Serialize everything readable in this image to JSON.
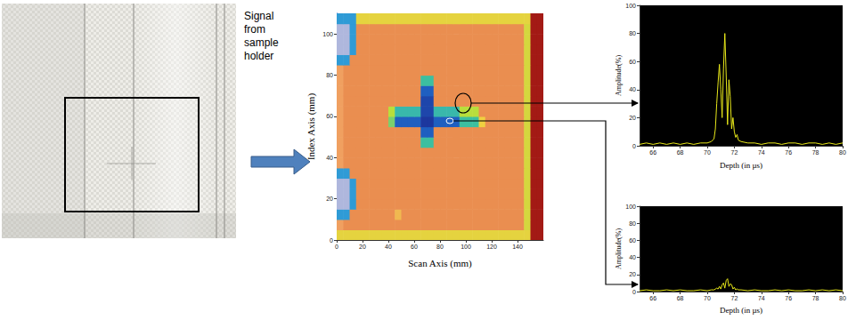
{
  "chart_data": [
    {
      "type": "heatmap",
      "xlabel": "Scan Axis (mm)",
      "ylabel": "Index Axis (mm)",
      "annotations": [
        "Signal from sample holder"
      ],
      "xlim": [
        0,
        160
      ],
      "xticks": [
        0,
        20,
        40,
        60,
        80,
        100,
        120,
        140
      ],
      "ylim": [
        0,
        110
      ],
      "yticks": [
        0,
        20,
        40,
        60,
        80,
        100
      ],
      "zlim": [
        0,
        100
      ],
      "x_bins": [
        0,
        5,
        10,
        15,
        20,
        25,
        30,
        35,
        40,
        45,
        50,
        55,
        60,
        65,
        70,
        75,
        80,
        85,
        90,
        95,
        100,
        105,
        110,
        115,
        120,
        125,
        130,
        135,
        140,
        145,
        150,
        155,
        160
      ],
      "y_bins": [
        0,
        5,
        10,
        15,
        20,
        25,
        30,
        35,
        40,
        45,
        50,
        55,
        60,
        65,
        70,
        75,
        80,
        85,
        90,
        95,
        100,
        105,
        110
      ],
      "cells": [
        [
          58,
          58,
          58,
          58,
          58,
          58,
          58,
          58,
          58,
          58,
          58,
          58,
          58,
          58,
          58,
          58,
          58,
          58,
          58,
          58,
          58,
          58,
          58,
          58,
          58,
          58,
          58,
          58,
          58,
          58,
          98,
          98
        ],
        [
          70,
          78,
          78,
          78,
          78,
          78,
          78,
          78,
          78,
          78,
          78,
          78,
          78,
          78,
          78,
          78,
          78,
          78,
          78,
          78,
          78,
          78,
          78,
          78,
          78,
          78,
          78,
          78,
          78,
          55,
          98,
          98
        ],
        [
          30,
          30,
          78,
          78,
          78,
          78,
          78,
          78,
          78,
          65,
          78,
          78,
          78,
          78,
          78,
          78,
          78,
          78,
          78,
          78,
          78,
          78,
          78,
          78,
          78,
          78,
          78,
          78,
          78,
          55,
          98,
          98
        ],
        [
          3,
          3,
          30,
          78,
          78,
          78,
          78,
          78,
          78,
          78,
          78,
          78,
          78,
          78,
          78,
          78,
          78,
          78,
          78,
          78,
          78,
          78,
          78,
          78,
          78,
          78,
          78,
          78,
          78,
          55,
          98,
          98
        ],
        [
          3,
          3,
          30,
          78,
          78,
          78,
          78,
          78,
          78,
          78,
          78,
          78,
          78,
          78,
          78,
          78,
          78,
          78,
          78,
          78,
          78,
          78,
          78,
          78,
          78,
          78,
          78,
          78,
          78,
          55,
          98,
          98
        ],
        [
          3,
          3,
          30,
          78,
          78,
          78,
          78,
          78,
          78,
          78,
          78,
          78,
          78,
          78,
          78,
          78,
          78,
          78,
          78,
          78,
          78,
          78,
          78,
          78,
          78,
          78,
          78,
          78,
          78,
          55,
          98,
          98
        ],
        [
          30,
          30,
          78,
          78,
          78,
          78,
          78,
          78,
          78,
          78,
          78,
          78,
          78,
          78,
          78,
          78,
          78,
          78,
          78,
          78,
          78,
          78,
          78,
          78,
          78,
          78,
          78,
          78,
          78,
          55,
          98,
          98
        ],
        [
          70,
          78,
          78,
          78,
          78,
          78,
          78,
          78,
          78,
          78,
          78,
          78,
          78,
          78,
          78,
          78,
          78,
          78,
          78,
          78,
          78,
          78,
          78,
          78,
          78,
          78,
          78,
          78,
          78,
          55,
          98,
          98
        ],
        [
          70,
          78,
          78,
          78,
          78,
          78,
          78,
          78,
          78,
          78,
          78,
          78,
          78,
          78,
          78,
          78,
          78,
          78,
          78,
          78,
          78,
          78,
          78,
          78,
          78,
          78,
          78,
          78,
          78,
          55,
          98,
          98
        ],
        [
          70,
          78,
          78,
          78,
          78,
          78,
          78,
          78,
          78,
          78,
          78,
          78,
          78,
          40,
          40,
          78,
          78,
          78,
          78,
          78,
          78,
          78,
          78,
          78,
          78,
          78,
          78,
          78,
          78,
          55,
          98,
          98
        ],
        [
          70,
          78,
          78,
          78,
          78,
          78,
          78,
          78,
          78,
          78,
          78,
          78,
          78,
          20,
          20,
          78,
          78,
          78,
          78,
          78,
          78,
          78,
          78,
          78,
          78,
          78,
          78,
          78,
          78,
          55,
          98,
          98
        ],
        [
          70,
          78,
          78,
          78,
          78,
          78,
          78,
          78,
          45,
          20,
          20,
          20,
          20,
          12,
          12,
          20,
          20,
          20,
          20,
          40,
          40,
          40,
          60,
          78,
          78,
          78,
          78,
          78,
          78,
          55,
          98,
          98
        ],
        [
          70,
          78,
          78,
          78,
          78,
          78,
          78,
          78,
          50,
          38,
          38,
          38,
          38,
          15,
          15,
          38,
          38,
          38,
          38,
          50,
          50,
          50,
          78,
          78,
          78,
          78,
          78,
          78,
          78,
          55,
          98,
          98
        ],
        [
          70,
          78,
          78,
          78,
          78,
          78,
          78,
          78,
          78,
          78,
          78,
          78,
          78,
          15,
          15,
          78,
          78,
          78,
          78,
          78,
          78,
          78,
          78,
          78,
          78,
          78,
          78,
          78,
          78,
          55,
          98,
          98
        ],
        [
          70,
          78,
          78,
          78,
          78,
          78,
          78,
          78,
          78,
          78,
          78,
          78,
          78,
          20,
          20,
          78,
          78,
          78,
          78,
          78,
          78,
          78,
          78,
          78,
          78,
          78,
          78,
          78,
          78,
          55,
          98,
          98
        ],
        [
          70,
          78,
          78,
          78,
          78,
          78,
          78,
          78,
          78,
          78,
          78,
          78,
          78,
          40,
          40,
          78,
          78,
          78,
          78,
          78,
          78,
          78,
          78,
          78,
          78,
          78,
          78,
          78,
          78,
          55,
          98,
          98
        ],
        [
          70,
          78,
          78,
          78,
          78,
          78,
          78,
          78,
          78,
          78,
          78,
          78,
          78,
          78,
          78,
          78,
          78,
          78,
          78,
          78,
          78,
          78,
          78,
          78,
          78,
          78,
          78,
          78,
          78,
          55,
          98,
          98
        ],
        [
          30,
          30,
          78,
          78,
          78,
          78,
          78,
          78,
          78,
          78,
          78,
          78,
          78,
          78,
          78,
          78,
          78,
          78,
          78,
          78,
          78,
          78,
          78,
          78,
          78,
          78,
          78,
          78,
          78,
          55,
          98,
          98
        ],
        [
          3,
          3,
          30,
          78,
          78,
          78,
          78,
          78,
          78,
          78,
          78,
          78,
          78,
          78,
          78,
          78,
          78,
          78,
          78,
          78,
          78,
          78,
          78,
          78,
          78,
          78,
          78,
          78,
          78,
          55,
          98,
          98
        ],
        [
          3,
          3,
          30,
          78,
          78,
          78,
          78,
          78,
          78,
          78,
          78,
          78,
          78,
          78,
          78,
          78,
          78,
          78,
          78,
          78,
          78,
          78,
          78,
          78,
          78,
          78,
          78,
          78,
          78,
          55,
          98,
          98
        ],
        [
          3,
          3,
          30,
          78,
          78,
          78,
          78,
          78,
          78,
          78,
          78,
          78,
          78,
          78,
          78,
          78,
          78,
          78,
          78,
          78,
          78,
          78,
          78,
          78,
          78,
          78,
          78,
          78,
          78,
          55,
          98,
          98
        ],
        [
          30,
          30,
          30,
          58,
          58,
          58,
          58,
          58,
          58,
          58,
          58,
          58,
          58,
          58,
          58,
          58,
          58,
          58,
          58,
          58,
          58,
          58,
          58,
          58,
          58,
          58,
          58,
          58,
          58,
          58,
          98,
          98
        ]
      ]
    },
    {
      "type": "line",
      "xlabel": "Depth (in µs)",
      "ylabel": "Amplitude(%)",
      "xlim": [
        65,
        80
      ],
      "xticks": [
        66,
        68,
        70,
        72,
        74,
        76,
        78,
        80
      ],
      "ylim": [
        0,
        100
      ],
      "yticks": [
        0,
        20,
        40,
        60,
        80,
        100
      ],
      "color": "#e8e81a",
      "x": [
        65,
        65.5,
        66,
        66.5,
        67,
        67.5,
        68,
        68.5,
        69,
        69.5,
        70,
        70.3,
        70.5,
        70.6,
        70.7,
        70.8,
        70.9,
        71,
        71.1,
        71.2,
        71.3,
        71.4,
        71.5,
        71.6,
        71.7,
        71.8,
        71.9,
        72,
        72.1,
        72.2,
        72.3,
        72.5,
        73,
        73.5,
        74,
        74.5,
        75,
        75.5,
        76,
        76.5,
        77,
        77.5,
        78,
        78.5,
        79,
        79.5,
        80
      ],
      "values": [
        1,
        2,
        1,
        2,
        1,
        2,
        1,
        2,
        1,
        2,
        2,
        3,
        5,
        12,
        30,
        45,
        58,
        40,
        20,
        55,
        80,
        50,
        15,
        47,
        35,
        12,
        20,
        10,
        6,
        8,
        4,
        3,
        2,
        2,
        1,
        2,
        2,
        1,
        2,
        2,
        1,
        2,
        2,
        1,
        2,
        1,
        2
      ]
    },
    {
      "type": "line",
      "xlabel": "Depth (in µs)",
      "ylabel": "Amplitude(%)",
      "xlim": [
        65,
        80
      ],
      "xticks": [
        66,
        68,
        70,
        72,
        74,
        76,
        78,
        80
      ],
      "ylim": [
        0,
        100
      ],
      "yticks": [
        0,
        20,
        40,
        60,
        80,
        100
      ],
      "color": "#e8e81a",
      "x": [
        65,
        65.5,
        66,
        66.5,
        67,
        67.5,
        68,
        68.5,
        69,
        69.5,
        70,
        70.3,
        70.5,
        70.6,
        70.7,
        70.8,
        70.9,
        71,
        71.1,
        71.2,
        71.3,
        71.4,
        71.5,
        71.6,
        71.7,
        71.8,
        71.9,
        72,
        72.1,
        72.2,
        72.3,
        72.5,
        73,
        73.5,
        74,
        74.5,
        75,
        75.5,
        76,
        76.5,
        77,
        77.5,
        78,
        78.5,
        79,
        79.5,
        80
      ],
      "values": [
        1,
        2,
        1,
        1,
        2,
        1,
        2,
        1,
        1,
        2,
        1,
        2,
        2,
        3,
        4,
        3,
        6,
        3,
        8,
        10,
        4,
        13,
        15,
        6,
        9,
        8,
        3,
        5,
        2,
        3,
        2,
        2,
        1,
        2,
        1,
        1,
        2,
        1,
        2,
        1,
        1,
        2,
        1,
        2,
        1,
        2,
        1
      ]
    }
  ]
}
